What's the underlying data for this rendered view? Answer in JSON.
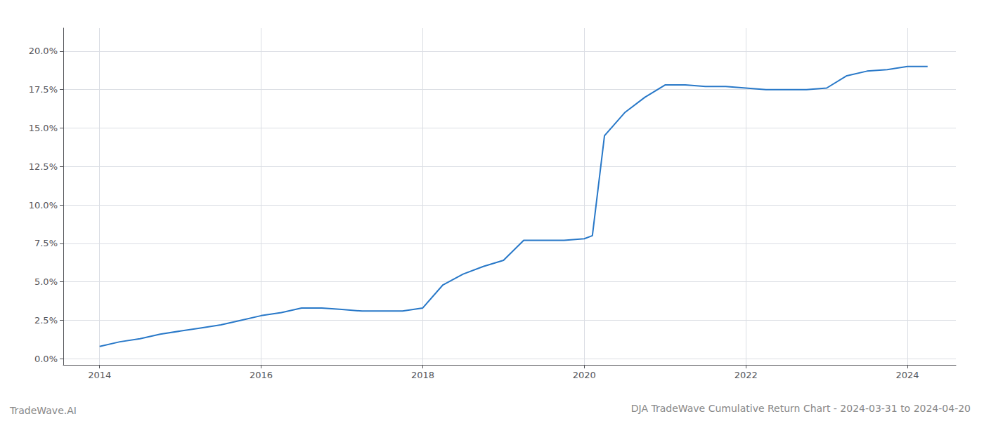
{
  "chart_data": {
    "type": "line",
    "title": "DJA TradeWave Cumulative Return Chart - 2024-03-31 to 2024-04-20",
    "annotations": [
      "TradeWave.AI"
    ],
    "x": [
      2014.0,
      2014.25,
      2014.5,
      2014.75,
      2015.0,
      2015.25,
      2015.5,
      2015.75,
      2016.0,
      2016.25,
      2016.5,
      2016.75,
      2017.0,
      2017.25,
      2017.5,
      2017.75,
      2018.0,
      2018.25,
      2018.5,
      2018.75,
      2019.0,
      2019.25,
      2019.5,
      2019.75,
      2020.0,
      2020.1,
      2020.25,
      2020.5,
      2020.75,
      2021.0,
      2021.25,
      2021.5,
      2021.75,
      2022.0,
      2022.25,
      2022.5,
      2022.75,
      2023.0,
      2023.25,
      2023.5,
      2023.75,
      2024.0,
      2024.25
    ],
    "values": [
      0.008,
      0.011,
      0.013,
      0.016,
      0.018,
      0.02,
      0.022,
      0.025,
      0.028,
      0.03,
      0.033,
      0.033,
      0.032,
      0.031,
      0.031,
      0.031,
      0.033,
      0.048,
      0.055,
      0.06,
      0.064,
      0.077,
      0.077,
      0.077,
      0.078,
      0.08,
      0.145,
      0.16,
      0.17,
      0.178,
      0.178,
      0.177,
      0.177,
      0.176,
      0.175,
      0.175,
      0.175,
      0.176,
      0.184,
      0.187,
      0.188,
      0.19,
      0.19
    ],
    "color": "#2878c8",
    "xlim": [
      2013.55,
      2024.6
    ],
    "ylim": [
      -0.004,
      0.215
    ],
    "xticks": [
      2014,
      2016,
      2018,
      2020,
      2022,
      2024
    ],
    "yticks": [
      {
        "value": 0.0,
        "label": "0.0%"
      },
      {
        "value": 0.025,
        "label": "2.5%"
      },
      {
        "value": 0.05,
        "label": "5.0%"
      },
      {
        "value": 0.075,
        "label": "7.5%"
      },
      {
        "value": 0.1,
        "label": "10.0%"
      },
      {
        "value": 0.125,
        "label": "12.5%"
      },
      {
        "value": 0.15,
        "label": "15.0%"
      },
      {
        "value": 0.175,
        "label": "17.5%"
      },
      {
        "value": 0.2,
        "label": "20.0%"
      }
    ],
    "grid": true
  }
}
